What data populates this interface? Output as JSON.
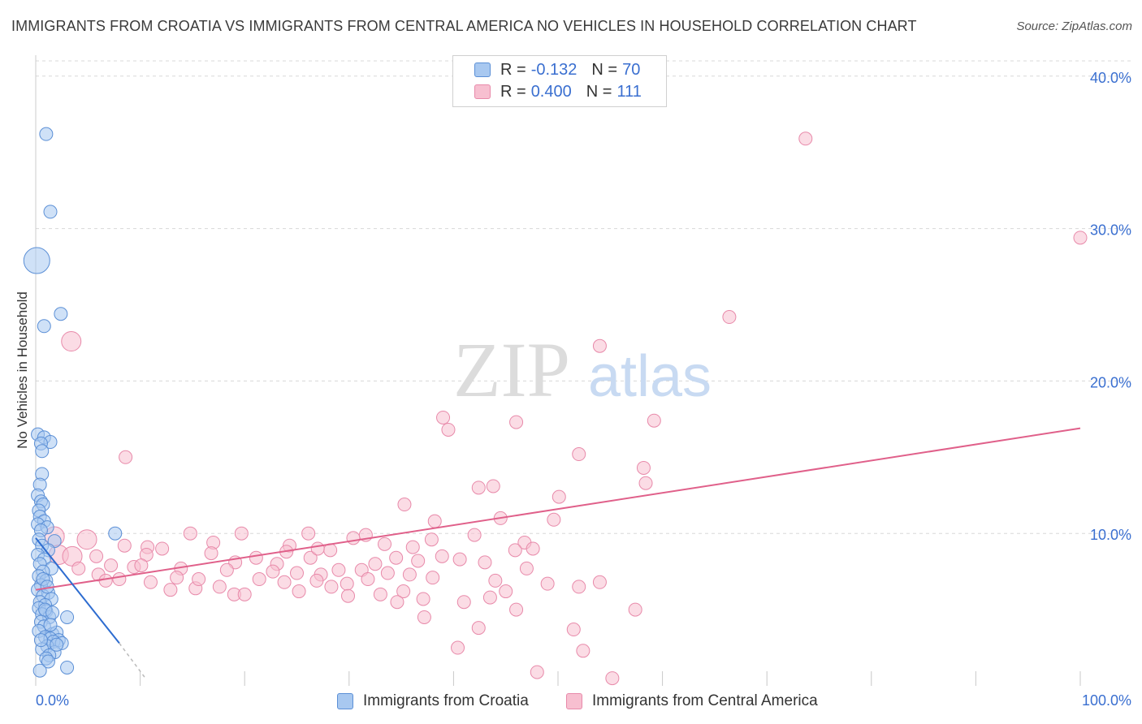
{
  "title": "IMMIGRANTS FROM CROATIA VS IMMIGRANTS FROM CENTRAL AMERICA NO VEHICLES IN HOUSEHOLD CORRELATION CHART",
  "source": "Source: ZipAtlas.com",
  "watermark": {
    "zip": "ZIP",
    "atlas": "atlas"
  },
  "legend": {
    "rows": [
      {
        "r_label": "R =",
        "r_value": "-0.132",
        "n_label": "N =",
        "n_value": "70"
      },
      {
        "r_label": "R =",
        "r_value": "0.400",
        "n_label": "N =",
        "n_value": "111"
      }
    ]
  },
  "bottom_legend": {
    "series1": "Immigrants from Croatia",
    "series2": "Immigrants from Central America"
  },
  "colors": {
    "croatia_fill": "#a8c8f0",
    "croatia_stroke": "#5b8fd6",
    "croatia_line": "#2d6cd0",
    "central_fill": "#f7bfd0",
    "central_stroke": "#e88aaa",
    "central_line": "#e0608a",
    "grid": "#d8d8d8",
    "tick_text": "#3a6fd0"
  },
  "chart_data": {
    "type": "scatter",
    "title": "IMMIGRANTS FROM CROATIA VS IMMIGRANTS FROM CENTRAL AMERICA NO VEHICLES IN HOUSEHOLD CORRELATION CHART",
    "xlabel": "",
    "ylabel": "No Vehicles in Household",
    "xlim": [
      0,
      100
    ],
    "ylim": [
      0,
      41
    ],
    "x_tick_labels": [
      "0.0%",
      "100.0%"
    ],
    "y_ticks": [
      10,
      20,
      30,
      40
    ],
    "y_tick_labels": [
      "10.0%",
      "20.0%",
      "30.0%",
      "40.0%"
    ],
    "series": [
      {
        "name": "Immigrants from Croatia",
        "R": -0.132,
        "N": 70,
        "trend": {
          "x": [
            0,
            8.0
          ],
          "y": [
            9.7,
            2.8
          ],
          "dashed_to": [
            10.5,
            0.5
          ]
        },
        "points": [
          [
            0.1,
            27.9,
            2
          ],
          [
            1.0,
            36.2,
            1
          ],
          [
            1.4,
            31.1,
            1
          ],
          [
            2.4,
            24.4,
            1
          ],
          [
            0.8,
            23.6,
            1
          ],
          [
            0.2,
            16.5,
            1
          ],
          [
            0.8,
            16.3,
            1
          ],
          [
            1.4,
            16.0,
            1
          ],
          [
            0.5,
            15.9,
            1
          ],
          [
            0.6,
            15.4,
            1
          ],
          [
            0.6,
            13.9,
            1
          ],
          [
            0.4,
            13.2,
            1
          ],
          [
            0.2,
            12.5,
            1
          ],
          [
            0.5,
            12.1,
            1
          ],
          [
            0.7,
            11.9,
            1
          ],
          [
            0.3,
            11.5,
            1
          ],
          [
            0.4,
            11.1,
            1
          ],
          [
            0.8,
            10.8,
            1
          ],
          [
            0.2,
            10.6,
            1
          ],
          [
            1.1,
            10.4,
            1
          ],
          [
            0.5,
            10.2,
            1
          ],
          [
            7.6,
            10.0,
            1
          ],
          [
            0.3,
            9.6,
            1
          ],
          [
            1.8,
            9.5,
            1
          ],
          [
            0.6,
            9.2,
            1
          ],
          [
            1.2,
            8.9,
            1
          ],
          [
            0.2,
            8.6,
            1
          ],
          [
            0.8,
            8.3,
            1
          ],
          [
            0.4,
            8.0,
            1
          ],
          [
            1.5,
            7.7,
            1
          ],
          [
            0.7,
            7.5,
            1
          ],
          [
            0.3,
            7.2,
            1
          ],
          [
            1.0,
            6.9,
            1
          ],
          [
            0.5,
            6.6,
            1
          ],
          [
            0.2,
            6.3,
            1
          ],
          [
            1.2,
            6.1,
            1
          ],
          [
            0.7,
            5.9,
            1
          ],
          [
            1.5,
            5.7,
            1
          ],
          [
            0.4,
            5.5,
            1
          ],
          [
            0.9,
            5.3,
            1
          ],
          [
            0.3,
            5.1,
            1
          ],
          [
            1.0,
            4.9,
            1
          ],
          [
            0.6,
            4.7,
            1
          ],
          [
            1.3,
            4.5,
            1
          ],
          [
            3.0,
            4.5,
            1
          ],
          [
            0.5,
            4.2,
            1
          ],
          [
            0.8,
            3.9,
            1
          ],
          [
            0.3,
            3.6,
            1
          ],
          [
            1.6,
            3.4,
            1
          ],
          [
            2.0,
            3.5,
            1
          ],
          [
            0.9,
            3.2,
            1
          ],
          [
            1.4,
            3.1,
            1
          ],
          [
            2.2,
            3.0,
            1
          ],
          [
            1.7,
            2.9,
            1
          ],
          [
            2.5,
            2.8,
            1
          ],
          [
            1.1,
            2.6,
            1
          ],
          [
            0.6,
            2.4,
            1
          ],
          [
            1.8,
            2.2,
            1
          ],
          [
            1.3,
            2.0,
            1
          ],
          [
            1.0,
            1.8,
            1
          ],
          [
            1.2,
            1.6,
            1
          ],
          [
            3.0,
            1.2,
            1
          ],
          [
            0.4,
            1.0,
            1
          ],
          [
            0.7,
            7.0,
            1
          ],
          [
            1.1,
            6.5,
            1
          ],
          [
            0.9,
            5.0,
            1
          ],
          [
            1.6,
            4.8,
            1
          ],
          [
            0.5,
            3.0,
            1
          ],
          [
            2.0,
            2.7,
            1
          ],
          [
            1.4,
            4.0,
            1
          ]
        ]
      },
      {
        "name": "Immigrants from Central America",
        "R": 0.4,
        "N": 111,
        "trend": {
          "x": [
            0,
            100
          ],
          "y": [
            6.3,
            16.9
          ]
        },
        "points": [
          [
            73.7,
            35.9,
            1
          ],
          [
            100.0,
            29.4,
            1
          ],
          [
            3.4,
            22.6,
            1.5
          ],
          [
            66.4,
            24.2,
            1
          ],
          [
            54.0,
            22.3,
            1
          ],
          [
            39.0,
            17.6,
            1
          ],
          [
            39.5,
            16.8,
            1
          ],
          [
            46.0,
            17.3,
            1
          ],
          [
            59.2,
            17.4,
            1
          ],
          [
            8.6,
            15.0,
            1
          ],
          [
            52.0,
            15.2,
            1
          ],
          [
            58.2,
            14.3,
            1
          ],
          [
            42.4,
            13.0,
            1
          ],
          [
            43.8,
            13.1,
            1
          ],
          [
            50.1,
            12.4,
            1
          ],
          [
            58.4,
            13.3,
            1
          ],
          [
            35.3,
            11.9,
            1
          ],
          [
            44.5,
            11.0,
            1
          ],
          [
            38.2,
            10.8,
            1
          ],
          [
            49.6,
            10.9,
            1
          ],
          [
            1.8,
            9.8,
            1.5
          ],
          [
            4.9,
            9.6,
            1.5
          ],
          [
            14.8,
            10.0,
            1
          ],
          [
            19.7,
            10.0,
            1
          ],
          [
            26.1,
            10.0,
            1
          ],
          [
            30.4,
            9.7,
            1
          ],
          [
            31.6,
            9.9,
            1
          ],
          [
            37.9,
            9.6,
            1
          ],
          [
            42.0,
            9.9,
            1
          ],
          [
            46.8,
            9.4,
            1
          ],
          [
            8.5,
            9.2,
            1
          ],
          [
            10.7,
            9.1,
            1
          ],
          [
            12.1,
            9.0,
            1
          ],
          [
            17.0,
            9.4,
            1
          ],
          [
            24.3,
            9.2,
            1
          ],
          [
            28.2,
            8.9,
            1
          ],
          [
            33.4,
            9.3,
            1
          ],
          [
            36.1,
            9.1,
            1
          ],
          [
            45.9,
            8.9,
            1
          ],
          [
            2.2,
            8.6,
            1.5
          ],
          [
            3.5,
            8.5,
            1.5
          ],
          [
            5.8,
            8.5,
            1
          ],
          [
            10.6,
            8.6,
            1
          ],
          [
            16.8,
            8.7,
            1
          ],
          [
            19.1,
            8.1,
            1
          ],
          [
            21.1,
            8.4,
            1
          ],
          [
            23.1,
            8.0,
            1
          ],
          [
            26.3,
            8.4,
            1
          ],
          [
            34.5,
            8.4,
            1
          ],
          [
            36.6,
            8.2,
            1
          ],
          [
            38.9,
            8.5,
            1
          ],
          [
            40.6,
            8.3,
            1
          ],
          [
            43.0,
            8.1,
            1
          ],
          [
            7.2,
            7.9,
            1
          ],
          [
            9.4,
            7.8,
            1
          ],
          [
            13.9,
            7.7,
            1
          ],
          [
            18.3,
            7.6,
            1
          ],
          [
            22.7,
            7.5,
            1
          ],
          [
            25.0,
            7.4,
            1
          ],
          [
            27.3,
            7.3,
            1
          ],
          [
            29.0,
            7.6,
            1
          ],
          [
            31.2,
            7.6,
            1
          ],
          [
            33.7,
            7.4,
            1
          ],
          [
            35.8,
            7.3,
            1
          ],
          [
            47.0,
            7.7,
            1
          ],
          [
            4.1,
            7.7,
            1
          ],
          [
            6.0,
            7.3,
            1
          ],
          [
            8.0,
            7.0,
            1
          ],
          [
            11.0,
            6.8,
            1
          ],
          [
            13.5,
            7.1,
            1
          ],
          [
            17.6,
            6.5,
            1
          ],
          [
            21.4,
            7.0,
            1
          ],
          [
            23.8,
            6.8,
            1
          ],
          [
            26.9,
            6.9,
            1
          ],
          [
            29.8,
            6.7,
            1
          ],
          [
            31.8,
            7.0,
            1
          ],
          [
            38.0,
            7.1,
            1
          ],
          [
            44.0,
            6.9,
            1
          ],
          [
            49.0,
            6.7,
            1
          ],
          [
            54.0,
            6.8,
            1
          ],
          [
            12.9,
            6.3,
            1
          ],
          [
            15.3,
            6.4,
            1
          ],
          [
            19.0,
            6.0,
            1
          ],
          [
            25.2,
            6.2,
            1
          ],
          [
            29.9,
            5.9,
            1
          ],
          [
            33.0,
            6.0,
            1
          ],
          [
            35.2,
            6.2,
            1
          ],
          [
            37.1,
            5.7,
            1
          ],
          [
            41.0,
            5.5,
            1
          ],
          [
            43.5,
            5.8,
            1
          ],
          [
            45.0,
            6.2,
            1
          ],
          [
            20.0,
            6.0,
            1
          ],
          [
            34.6,
            5.5,
            1
          ],
          [
            46.0,
            5.0,
            1
          ],
          [
            52.0,
            6.5,
            1
          ],
          [
            37.2,
            4.5,
            1
          ],
          [
            42.4,
            3.8,
            1
          ],
          [
            51.5,
            3.7,
            1
          ],
          [
            40.4,
            2.5,
            1
          ],
          [
            52.4,
            2.3,
            1
          ],
          [
            48.0,
            0.9,
            1
          ],
          [
            55.2,
            0.5,
            1
          ],
          [
            57.4,
            5.0,
            1
          ],
          [
            28.3,
            6.5,
            1
          ],
          [
            15.6,
            7.0,
            1
          ],
          [
            6.7,
            6.9,
            1
          ],
          [
            10.1,
            7.9,
            1
          ],
          [
            24.0,
            8.8,
            1
          ],
          [
            32.5,
            8.0,
            1
          ],
          [
            47.6,
            9.0,
            1
          ],
          [
            27.0,
            9.0,
            1
          ]
        ]
      }
    ]
  }
}
